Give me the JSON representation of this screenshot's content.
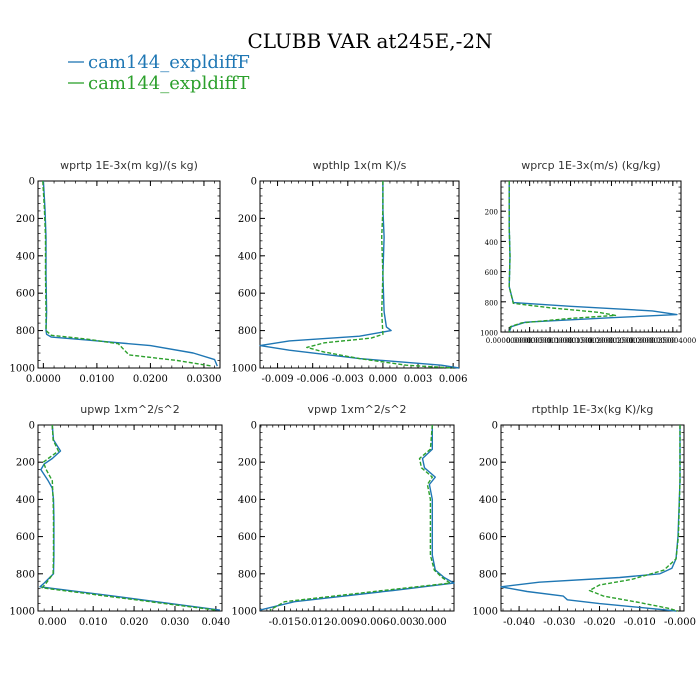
{
  "figure": {
    "title": "CLUBB VAR at245E,-2N",
    "legend": [
      {
        "label": "cam144_expldiffF",
        "color": "#1f77b4",
        "dash": false
      },
      {
        "label": "cam144_expldiffT",
        "color": "#2ca02c",
        "dash": true
      }
    ]
  },
  "chart_data": [
    {
      "type": "line",
      "title": "wprtp  1E-3x(m kg)/(s kg)",
      "xlim": [
        -0.001,
        0.033
      ],
      "ylim": [
        1000,
        0
      ],
      "xticks": [
        0.0,
        0.01,
        0.02,
        0.03
      ],
      "xtick_labels": [
        "0.0000",
        "0.0100",
        "0.0200",
        "0.0300"
      ],
      "yticks": [
        0,
        200,
        400,
        600,
        800,
        1000
      ],
      "ytick_labels": [
        "0",
        "200",
        "400",
        "600",
        "800",
        "1000"
      ],
      "series": [
        {
          "color": "#1f77b4",
          "dash": false,
          "x": [
            0.0,
            0.0003,
            0.0005,
            0.0005,
            0.0006,
            0.0005,
            0.0006,
            0.0015,
            0.008,
            0.02,
            0.028,
            0.032,
            0.0325
          ],
          "y": [
            0,
            150,
            300,
            500,
            700,
            800,
            820,
            835,
            850,
            880,
            920,
            955,
            990
          ]
        },
        {
          "color": "#2ca02c",
          "dash": true,
          "x": [
            -0.0001,
            0.0002,
            0.0004,
            0.0004,
            0.0005,
            0.0005,
            0.0015,
            0.008,
            0.014,
            0.015,
            0.016,
            0.025,
            0.0315
          ],
          "y": [
            0,
            150,
            300,
            500,
            700,
            800,
            825,
            845,
            870,
            900,
            930,
            960,
            990
          ]
        }
      ]
    },
    {
      "type": "line",
      "title": "wpthlp  1x(m K)/s",
      "xlim": [
        -0.0105,
        0.0065
      ],
      "ylim": [
        1000,
        0
      ],
      "xticks": [
        -0.009,
        -0.006,
        -0.003,
        0.0,
        0.003,
        0.006
      ],
      "xtick_labels": [
        "-0.009",
        "-0.006",
        "-0.003",
        "0.000",
        "0.003",
        "0.006"
      ],
      "yticks": [
        0,
        200,
        400,
        600,
        800,
        1000
      ],
      "ytick_labels": [
        "0",
        "200",
        "400",
        "600",
        "800",
        "1000"
      ],
      "series": [
        {
          "color": "#1f77b4",
          "dash": false,
          "x": [
            0.0,
            0.0,
            0.0001,
            0.0,
            0.0001,
            0.0003,
            0.0007,
            -0.002,
            -0.008,
            -0.0105,
            -0.008,
            -0.002,
            0.005,
            0.0065
          ],
          "y": [
            0,
            150,
            300,
            500,
            700,
            780,
            800,
            830,
            855,
            880,
            905,
            950,
            985,
            1000
          ]
        },
        {
          "color": "#2ca02c",
          "dash": true,
          "x": [
            0.0,
            0.0,
            -0.0001,
            0.0,
            -0.0001,
            0.0,
            -0.001,
            -0.005,
            -0.0065,
            -0.005,
            -0.002,
            0.002,
            0.006
          ],
          "y": [
            0,
            150,
            300,
            500,
            700,
            820,
            840,
            865,
            890,
            915,
            950,
            985,
            1000
          ]
        }
      ]
    },
    {
      "type": "line",
      "title": "wprcp  1E-3x(m/s) (kg/kg)",
      "xlim": [
        -2e-07,
        4.2e-06
      ],
      "ylim": [
        1000,
        0
      ],
      "xticks": [
        0.0,
        5e-07,
        1e-06,
        1.5e-06,
        2e-06,
        2.5e-06,
        3e-06,
        3.5e-06,
        4e-06
      ],
      "xtick_labels": [
        "0.000000000",
        "0.000000500",
        "0.000001000",
        "0.000001500",
        "0.000002000",
        "0.000002500",
        "0.000003000",
        "0.000003500",
        "0.000004000"
      ],
      "yticks": [
        200,
        400,
        600,
        800,
        1000
      ],
      "ytick_labels": [
        "200",
        "400",
        "600",
        "800",
        "1000"
      ],
      "series": [
        {
          "color": "#1f77b4",
          "dash": false,
          "x": [
            0.0,
            0.0,
            2e-08,
            0.0,
            1e-07,
            1.5e-06,
            3.5e-06,
            4.1e-06,
            2.5e-06,
            4e-07,
            5e-08,
            0.0
          ],
          "y": [
            0,
            300,
            500,
            700,
            805,
            830,
            860,
            885,
            905,
            935,
            965,
            1000
          ]
        },
        {
          "color": "#2ca02c",
          "dash": true,
          "x": [
            0.0,
            0.0,
            2e-08,
            0.0,
            1e-07,
            1e-06,
            2.2e-06,
            2.6e-06,
            1.5e-06,
            3e-07,
            3e-08,
            0.0
          ],
          "y": [
            0,
            300,
            500,
            700,
            810,
            840,
            870,
            890,
            910,
            940,
            965,
            1000
          ]
        }
      ]
    },
    {
      "type": "line",
      "title": "upwp  1xm^2/s^2",
      "xlim": [
        -0.0035,
        0.0415
      ],
      "ylim": [
        1000,
        0
      ],
      "xticks": [
        0.0,
        0.01,
        0.02,
        0.03,
        0.04
      ],
      "xtick_labels": [
        "0.000",
        "0.010",
        "0.020",
        "0.030",
        "0.040"
      ],
      "yticks": [
        0,
        200,
        400,
        600,
        800,
        1000
      ],
      "ytick_labels": [
        "0",
        "200",
        "400",
        "600",
        "800",
        "1000"
      ],
      "series": [
        {
          "color": "#1f77b4",
          "dash": false,
          "x": [
            0.0,
            0.0003,
            0.002,
            0.0,
            -0.002,
            -0.0028,
            -0.001,
            0.0,
            0.0003,
            0.0004,
            0.0004,
            0.0003,
            -0.002,
            -0.003,
            0.015,
            0.041
          ],
          "y": [
            0,
            80,
            140,
            180,
            210,
            240,
            300,
            340,
            400,
            500,
            700,
            800,
            850,
            870,
            920,
            995
          ]
        },
        {
          "color": "#2ca02c",
          "dash": true,
          "x": [
            0.0,
            0.0002,
            0.0015,
            -0.001,
            -0.0022,
            -0.0015,
            0.0,
            0.0002,
            0.0003,
            0.0003,
            0.0002,
            -0.0015,
            -0.0025,
            0.015,
            0.04
          ],
          "y": [
            0,
            80,
            140,
            180,
            200,
            240,
            300,
            400,
            500,
            700,
            800,
            850,
            875,
            925,
            995
          ]
        }
      ]
    },
    {
      "type": "line",
      "title": "vpwp  1xm^2/s^2",
      "xlim": [
        -0.0175,
        0.0022
      ],
      "ylim": [
        1000,
        0
      ],
      "xticks": [
        -0.015,
        -0.012,
        -0.009,
        -0.006,
        -0.003,
        0.0
      ],
      "xtick_labels": [
        "-0.015",
        "-0.012",
        "-0.009",
        "-0.006",
        "-0.003",
        "0.000"
      ],
      "yticks": [
        0,
        200,
        400,
        600,
        800,
        1000
      ],
      "ytick_labels": [
        "0",
        "200",
        "400",
        "600",
        "800",
        "1000"
      ],
      "series": [
        {
          "color": "#1f77b4",
          "dash": false,
          "x": [
            0.0,
            0.0,
            -0.001,
            -0.0008,
            0.0003,
            -0.0003,
            0.0,
            0.0,
            0.0,
            0.0003,
            0.0012,
            0.0022,
            -0.004,
            -0.014,
            -0.0175
          ],
          "y": [
            0,
            130,
            180,
            230,
            280,
            320,
            400,
            500,
            700,
            780,
            820,
            850,
            890,
            950,
            995
          ]
        },
        {
          "color": "#2ca02c",
          "dash": true,
          "x": [
            0.0,
            -0.0002,
            -0.0013,
            -0.0011,
            0.0,
            -0.0005,
            -0.0002,
            -0.0002,
            -0.0002,
            0.0002,
            0.001,
            0.0018,
            -0.005,
            -0.015,
            -0.0165
          ],
          "y": [
            0,
            130,
            180,
            230,
            280,
            320,
            400,
            500,
            700,
            780,
            820,
            850,
            890,
            950,
            995
          ]
        }
      ]
    },
    {
      "type": "line",
      "title": "rtpthlp  1E-3x(kg K)/kg",
      "xlim": [
        -0.0445,
        0.001
      ],
      "ylim": [
        1000,
        0
      ],
      "xticks": [
        -0.04,
        -0.03,
        -0.02,
        -0.01,
        0.0
      ],
      "xtick_labels": [
        "-0.040",
        "-0.030",
        "-0.020",
        "-0.010",
        "-0.000"
      ],
      "yticks": [
        0,
        200,
        400,
        600,
        800,
        1000
      ],
      "ytick_labels": [
        "0",
        "200",
        "400",
        "600",
        "800",
        "1000"
      ],
      "series": [
        {
          "color": "#1f77b4",
          "dash": false,
          "x": [
            0.0,
            0.0,
            -0.0005,
            -0.001,
            -0.002,
            -0.005,
            -0.015,
            -0.035,
            -0.0445,
            -0.038,
            -0.029,
            -0.028,
            -0.02,
            -0.008,
            -0.001
          ],
          "y": [
            0,
            300,
            600,
            720,
            770,
            800,
            820,
            845,
            870,
            895,
            920,
            940,
            960,
            985,
            1000
          ]
        },
        {
          "color": "#2ca02c",
          "dash": true,
          "x": [
            0.0,
            0.0,
            -0.0004,
            -0.001,
            -0.004,
            -0.012,
            -0.02,
            -0.0225,
            -0.019,
            -0.01,
            -0.003,
            -0.0005
          ],
          "y": [
            0,
            300,
            600,
            720,
            780,
            830,
            860,
            890,
            920,
            955,
            985,
            1000
          ]
        }
      ]
    }
  ]
}
